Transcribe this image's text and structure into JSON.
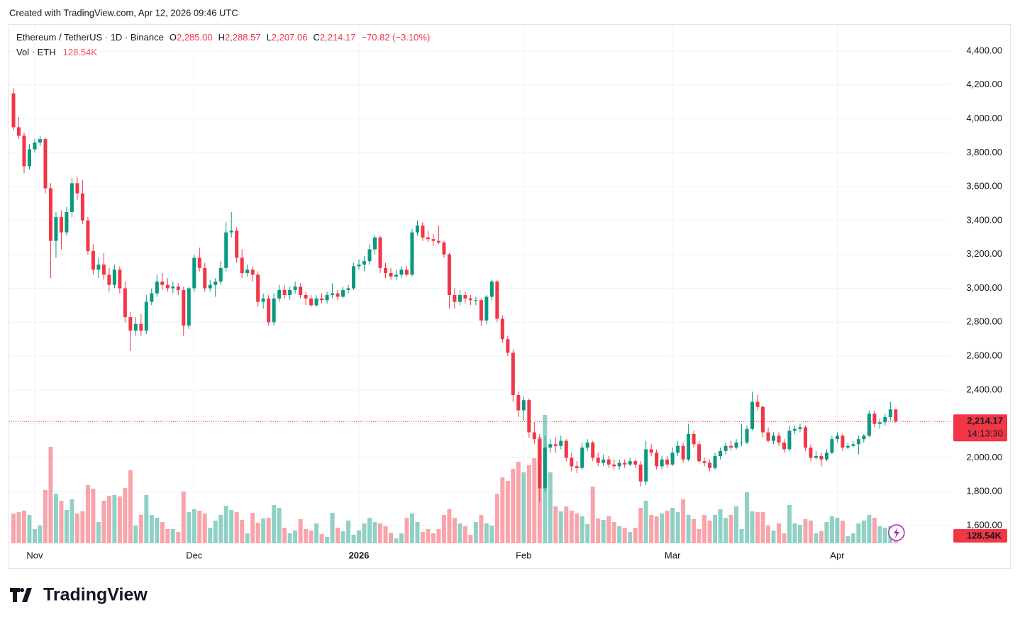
{
  "page_header": "Created with TradingView.com, Apr 12, 2026 09:46 UTC",
  "logo_text": "TradingView",
  "chart_data": {
    "type": "candlestick",
    "legend": {
      "symbol": "Ethereum / TetherUS · 1D · Binance",
      "o": "O",
      "open": "2,285.00",
      "h": "H",
      "high": "2,288.57",
      "l": "L",
      "low": "2,207.06",
      "c": "C",
      "close": "2,214.17",
      "change": "−70.82 (−3.10%)",
      "vol_title": "Vol · ETH"
    },
    "volume_label": "128.54K",
    "last_price_label": "2,214.17",
    "countdown": "14:13:30",
    "up_color": "#089981",
    "down_color": "#f23645",
    "xlim": [
      -0.8,
      176.3
    ],
    "xticks": [
      {
        "value": 4,
        "label": "Nov"
      },
      {
        "value": 34,
        "label": "Dec"
      },
      {
        "value": 65,
        "label": "2026"
      },
      {
        "value": 96,
        "label": "Feb"
      },
      {
        "value": 124,
        "label": "Mar"
      },
      {
        "value": 155,
        "label": "Apr"
      }
    ],
    "ylim": [
      1495.5,
      4554.6
    ],
    "yticks": [
      {
        "value": 1600,
        "label": "1,600.00"
      },
      {
        "value": 1800,
        "label": "1,800.00"
      },
      {
        "value": 2000,
        "label": "2,000.00"
      },
      {
        "value": 2200,
        "label": "2,200.00"
      },
      {
        "value": 2400,
        "label": "2,400.00"
      },
      {
        "value": 2600,
        "label": "2,600.00"
      },
      {
        "value": 2800,
        "label": "2,800.00"
      },
      {
        "value": 3000,
        "label": "3,000.00"
      },
      {
        "value": 3200,
        "label": "3,200.00"
      },
      {
        "value": 3400,
        "label": "3,400.00"
      },
      {
        "value": 3600,
        "label": "3,600.00"
      },
      {
        "value": 3800,
        "label": "3,800.00"
      },
      {
        "value": 4000,
        "label": "4,000.00"
      },
      {
        "value": 4200,
        "label": "4,200.00"
      },
      {
        "value": 4400,
        "label": "4,400.00"
      }
    ],
    "grid": true,
    "ohlc": [
      [
        4150,
        4180,
        3930,
        3950
      ],
      [
        3950,
        4010,
        3880,
        3900
      ],
      [
        3900,
        3920,
        3680,
        3720
      ],
      [
        3720,
        3850,
        3700,
        3820
      ],
      [
        3820,
        3880,
        3800,
        3860
      ],
      [
        3860,
        3900,
        3840,
        3880
      ],
      [
        3880,
        3890,
        3560,
        3590
      ],
      [
        3590,
        3620,
        3060,
        3280
      ],
      [
        3280,
        3450,
        3180,
        3420
      ],
      [
        3420,
        3460,
        3230,
        3330
      ],
      [
        3330,
        3480,
        3310,
        3450
      ],
      [
        3450,
        3650,
        3420,
        3620
      ],
      [
        3620,
        3660,
        3520,
        3560
      ],
      [
        3560,
        3640,
        3380,
        3400
      ],
      [
        3400,
        3420,
        3200,
        3220
      ],
      [
        3220,
        3260,
        3080,
        3110
      ],
      [
        3110,
        3180,
        3060,
        3140
      ],
      [
        3140,
        3210,
        3050,
        3080
      ],
      [
        3080,
        3120,
        2980,
        3020
      ],
      [
        3020,
        3140,
        3000,
        3110
      ],
      [
        3110,
        3130,
        2970,
        3000
      ],
      [
        3000,
        3040,
        2800,
        2830
      ],
      [
        2830,
        2860,
        2630,
        2750
      ],
      [
        2750,
        2830,
        2720,
        2790
      ],
      [
        2790,
        2850,
        2720,
        2750
      ],
      [
        2750,
        2960,
        2730,
        2920
      ],
      [
        2920,
        3000,
        2900,
        2970
      ],
      [
        2970,
        3080,
        2950,
        3040
      ],
      [
        3040,
        3090,
        2990,
        3020
      ],
      [
        3020,
        3060,
        2980,
        3000
      ],
      [
        3000,
        3040,
        2970,
        3010
      ],
      [
        3010,
        3030,
        2960,
        2990
      ],
      [
        2990,
        3010,
        2720,
        2780
      ],
      [
        2780,
        3010,
        2760,
        3000
      ],
      [
        3000,
        3200,
        2980,
        3180
      ],
      [
        3180,
        3240,
        3100,
        3120
      ],
      [
        3120,
        3150,
        2980,
        3000
      ],
      [
        3000,
        3050,
        2980,
        3020
      ],
      [
        3020,
        3060,
        2950,
        3040
      ],
      [
        3040,
        3160,
        3020,
        3120
      ],
      [
        3120,
        3390,
        3100,
        3330
      ],
      [
        3330,
        3450,
        3300,
        3340
      ],
      [
        3340,
        3360,
        3150,
        3180
      ],
      [
        3180,
        3230,
        3060,
        3090
      ],
      [
        3090,
        3140,
        3070,
        3110
      ],
      [
        3110,
        3130,
        3040,
        3080
      ],
      [
        3080,
        3100,
        2890,
        2920
      ],
      [
        2920,
        2970,
        2880,
        2940
      ],
      [
        2940,
        2960,
        2780,
        2800
      ],
      [
        2800,
        2970,
        2780,
        2940
      ],
      [
        2940,
        3020,
        2920,
        2990
      ],
      [
        2990,
        3020,
        2940,
        2960
      ],
      [
        2960,
        3010,
        2930,
        2990
      ],
      [
        2990,
        3040,
        2970,
        3010
      ],
      [
        3010,
        3030,
        2940,
        2960
      ],
      [
        2960,
        2980,
        2900,
        2940
      ],
      [
        2940,
        2960,
        2890,
        2900
      ],
      [
        2900,
        2960,
        2890,
        2940
      ],
      [
        2940,
        2970,
        2910,
        2930
      ],
      [
        2930,
        2980,
        2910,
        2960
      ],
      [
        2960,
        3030,
        2940,
        2970
      ],
      [
        2970,
        2990,
        2930,
        2950
      ],
      [
        2950,
        3010,
        2940,
        2990
      ],
      [
        2990,
        3020,
        2970,
        3000
      ],
      [
        3000,
        3150,
        2990,
        3130
      ],
      [
        3130,
        3170,
        3110,
        3140
      ],
      [
        3140,
        3190,
        3100,
        3160
      ],
      [
        3160,
        3260,
        3140,
        3230
      ],
      [
        3230,
        3310,
        3200,
        3300
      ],
      [
        3300,
        3310,
        3090,
        3120
      ],
      [
        3120,
        3150,
        3060,
        3090
      ],
      [
        3090,
        3120,
        3050,
        3070
      ],
      [
        3070,
        3110,
        3050,
        3080
      ],
      [
        3080,
        3130,
        3060,
        3110
      ],
      [
        3110,
        3130,
        3070,
        3080
      ],
      [
        3080,
        3350,
        3070,
        3330
      ],
      [
        3330,
        3400,
        3310,
        3370
      ],
      [
        3370,
        3390,
        3280,
        3300
      ],
      [
        3300,
        3340,
        3270,
        3290
      ],
      [
        3290,
        3320,
        3250,
        3280
      ],
      [
        3280,
        3370,
        3260,
        3270
      ],
      [
        3270,
        3280,
        3180,
        3200
      ],
      [
        3200,
        3210,
        2880,
        2960
      ],
      [
        2960,
        3000,
        2880,
        2920
      ],
      [
        2920,
        2990,
        2900,
        2960
      ],
      [
        2960,
        2980,
        2910,
        2940
      ],
      [
        2940,
        2960,
        2900,
        2930
      ],
      [
        2930,
        2950,
        2900,
        2930
      ],
      [
        2930,
        2940,
        2780,
        2810
      ],
      [
        2810,
        2960,
        2790,
        2950
      ],
      [
        2950,
        3050,
        2930,
        3040
      ],
      [
        3040,
        3050,
        2800,
        2820
      ],
      [
        2820,
        2840,
        2680,
        2700
      ],
      [
        2700,
        2720,
        2600,
        2620
      ],
      [
        2620,
        2640,
        2330,
        2370
      ],
      [
        2370,
        2390,
        2240,
        2280
      ],
      [
        2280,
        2360,
        2220,
        2340
      ],
      [
        2340,
        2350,
        2120,
        2150
      ],
      [
        2150,
        2210,
        2080,
        2110
      ],
      [
        2110,
        2140,
        1740,
        1820
      ],
      [
        1820,
        2130,
        1800,
        2060
      ],
      [
        2060,
        2110,
        2030,
        2080
      ],
      [
        2080,
        2120,
        2030,
        2070
      ],
      [
        2070,
        2130,
        2050,
        2100
      ],
      [
        2100,
        2110,
        1980,
        2000
      ],
      [
        2000,
        2030,
        1920,
        1950
      ],
      [
        1950,
        1980,
        1910,
        1940
      ],
      [
        1940,
        2090,
        1930,
        2060
      ],
      [
        2060,
        2110,
        2040,
        2090
      ],
      [
        2090,
        2100,
        1980,
        2000
      ],
      [
        2000,
        2030,
        1950,
        1970
      ],
      [
        1970,
        2020,
        1950,
        1990
      ],
      [
        1990,
        2010,
        1940,
        1960
      ],
      [
        1960,
        1990,
        1930,
        1950
      ],
      [
        1950,
        1990,
        1930,
        1970
      ],
      [
        1970,
        1990,
        1940,
        1960
      ],
      [
        1960,
        2000,
        1950,
        1980
      ],
      [
        1980,
        1990,
        1940,
        1960
      ],
      [
        1960,
        1980,
        1830,
        1860
      ],
      [
        1860,
        2100,
        1840,
        2050
      ],
      [
        2050,
        2080,
        2010,
        2030
      ],
      [
        2030,
        2050,
        1930,
        1950
      ],
      [
        1950,
        2010,
        1930,
        1990
      ],
      [
        1990,
        2010,
        1940,
        1960
      ],
      [
        1960,
        2060,
        1950,
        2030
      ],
      [
        2030,
        2100,
        2010,
        2070
      ],
      [
        2070,
        2090,
        1970,
        1990
      ],
      [
        1990,
        2200,
        1980,
        2140
      ],
      [
        2140,
        2160,
        2060,
        2080
      ],
      [
        2080,
        2100,
        1970,
        1980
      ],
      [
        1980,
        2000,
        1950,
        1970
      ],
      [
        1970,
        1990,
        1920,
        1940
      ],
      [
        1940,
        2030,
        1930,
        2010
      ],
      [
        2010,
        2060,
        1990,
        2040
      ],
      [
        2040,
        2090,
        2020,
        2070
      ],
      [
        2070,
        2100,
        2040,
        2060
      ],
      [
        2060,
        2110,
        2050,
        2090
      ],
      [
        2090,
        2200,
        2070,
        2090
      ],
      [
        2090,
        2190,
        2080,
        2170
      ],
      [
        2170,
        2390,
        2160,
        2330
      ],
      [
        2330,
        2370,
        2280,
        2300
      ],
      [
        2300,
        2310,
        2120,
        2150
      ],
      [
        2150,
        2180,
        2090,
        2100
      ],
      [
        2100,
        2150,
        2080,
        2130
      ],
      [
        2130,
        2150,
        2070,
        2090
      ],
      [
        2090,
        2110,
        2030,
        2050
      ],
      [
        2050,
        2190,
        2040,
        2160
      ],
      [
        2160,
        2190,
        2140,
        2170
      ],
      [
        2170,
        2200,
        2150,
        2180
      ],
      [
        2180,
        2190,
        2040,
        2060
      ],
      [
        2060,
        2080,
        1980,
        2000
      ],
      [
        2000,
        2040,
        1990,
        2010
      ],
      [
        2010,
        2030,
        1950,
        1990
      ],
      [
        1990,
        2050,
        1980,
        2030
      ],
      [
        2030,
        2130,
        2020,
        2110
      ],
      [
        2110,
        2150,
        2090,
        2130
      ],
      [
        2130,
        2140,
        2040,
        2060
      ],
      [
        2060,
        2090,
        2050,
        2070
      ],
      [
        2070,
        2100,
        2060,
        2080
      ],
      [
        2080,
        2130,
        2020,
        2110
      ],
      [
        2110,
        2140,
        2090,
        2130
      ],
      [
        2130,
        2280,
        2120,
        2260
      ],
      [
        2260,
        2280,
        2180,
        2200
      ],
      [
        2200,
        2230,
        2170,
        2210
      ],
      [
        2210,
        2260,
        2190,
        2240
      ],
      [
        2240,
        2330,
        2220,
        2285
      ],
      [
        2285,
        2288.57,
        2207.06,
        2214.17
      ]
    ],
    "volume": [
      630,
      660,
      690,
      600,
      300,
      375,
      1125,
      2040,
      1050,
      900,
      705,
      930,
      630,
      675,
      1230,
      1155,
      450,
      900,
      1005,
      1020,
      990,
      1170,
      1545,
      375,
      600,
      1020,
      600,
      540,
      450,
      300,
      300,
      240,
      1095,
      660,
      720,
      690,
      630,
      330,
      480,
      600,
      795,
      705,
      660,
      495,
      210,
      645,
      435,
      525,
      540,
      810,
      750,
      330,
      210,
      270,
      510,
      300,
      270,
      420,
      195,
      135,
      645,
      330,
      255,
      480,
      180,
      270,
      420,
      540,
      450,
      420,
      360,
      225,
      105,
      210,
      540,
      630,
      450,
      240,
      300,
      210,
      300,
      600,
      720,
      540,
      420,
      360,
      180,
      450,
      600,
      420,
      375,
      1050,
      1395,
      1320,
      1575,
      1725,
      1500,
      1650,
      1800,
      2250,
      2715,
      1500,
      780,
      675,
      780,
      690,
      630,
      570,
      405,
      1200,
      525,
      495,
      570,
      450,
      360,
      330,
      240,
      330,
      750,
      900,
      600,
      570,
      630,
      690,
      750,
      660,
      930,
      600,
      510,
      300,
      600,
      480,
      600,
      720,
      540,
      600,
      780,
      300,
      1080,
      675,
      660,
      660,
      375,
      270,
      420,
      210,
      810,
      420,
      390,
      510,
      480,
      210,
      255,
      450,
      570,
      540,
      480,
      150,
      210,
      420,
      480,
      600,
      540,
      360,
      330,
      360,
      128.54
    ]
  }
}
